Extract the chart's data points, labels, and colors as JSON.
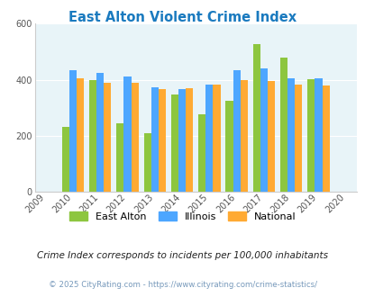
{
  "title": "East Alton Violent Crime Index",
  "years": [
    2009,
    2010,
    2011,
    2012,
    2013,
    2014,
    2015,
    2016,
    2017,
    2018,
    2019,
    2020
  ],
  "data_years": [
    2010,
    2011,
    2012,
    2013,
    2014,
    2015,
    2016,
    2017,
    2018,
    2019
  ],
  "east_alton": [
    232,
    397,
    243,
    208,
    347,
    275,
    325,
    527,
    480,
    403
  ],
  "illinois": [
    435,
    425,
    410,
    372,
    367,
    383,
    435,
    440,
    405,
    405
  ],
  "national": [
    405,
    390,
    390,
    365,
    371,
    383,
    398,
    395,
    383,
    379
  ],
  "colors": {
    "east_alton": "#8dc63f",
    "illinois": "#4da6ff",
    "national": "#ffaa33"
  },
  "ylim": [
    0,
    600
  ],
  "yticks": [
    0,
    200,
    400,
    600
  ],
  "plot_bg": "#e8f4f8",
  "footer_note": "Crime Index corresponds to incidents per 100,000 inhabitants",
  "copyright": "© 2025 CityRating.com - https://www.cityrating.com/crime-statistics/",
  "bar_width": 0.27,
  "legend_labels": [
    "East Alton",
    "Illinois",
    "National"
  ]
}
